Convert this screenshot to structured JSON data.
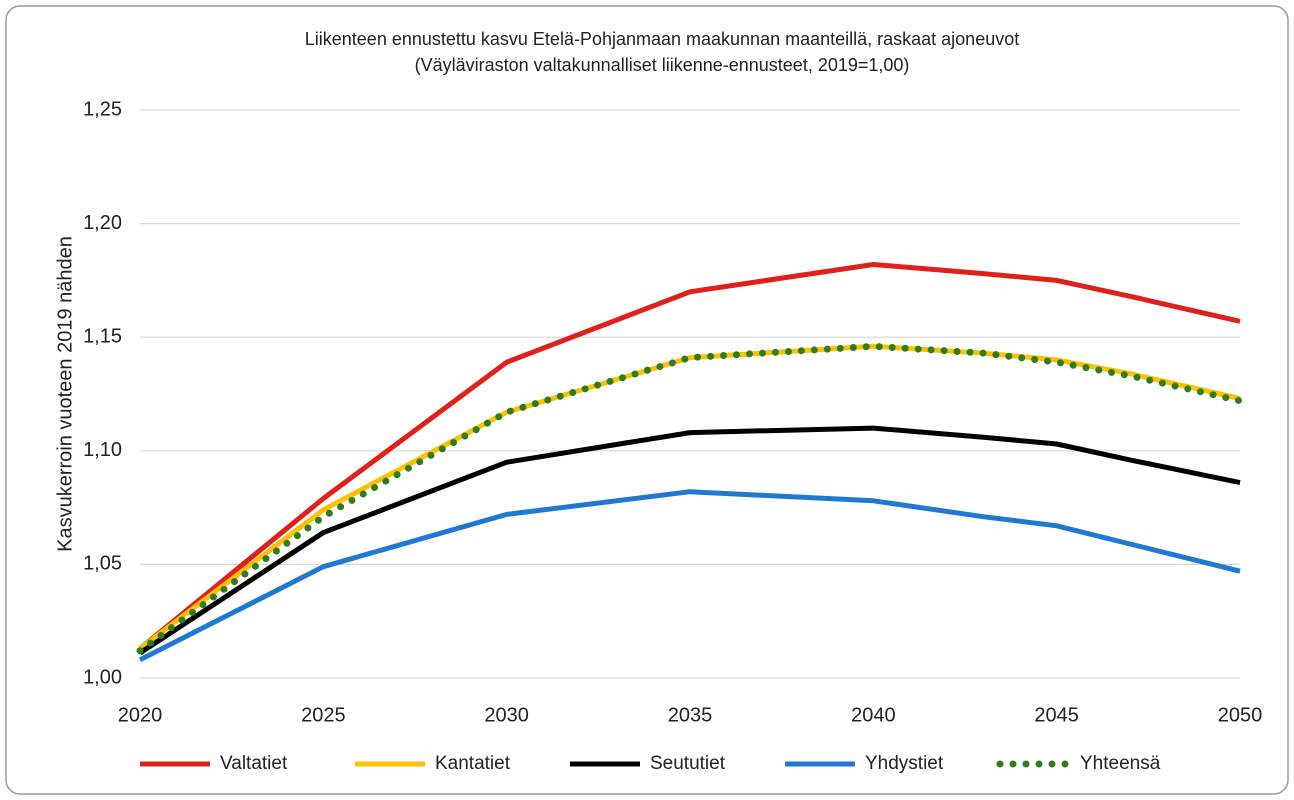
{
  "chart_data": {
    "type": "line",
    "title": "Liikenteen ennustettu kasvu Etelä-Pohjanmaan maakunnan maanteillä, raskaat ajoneuvot",
    "subtitle": "(Väyläviraston valtakunnalliset liikenne-ennusteet, 2019=1,00)",
    "y_label": "Kasvukerroin vuoteen 2019 nähden",
    "x": [
      2020,
      2025,
      2030,
      2035,
      2040,
      2043,
      2045,
      2047,
      2050
    ],
    "series": [
      {
        "name": "Valtatiet",
        "color": "#e0201b",
        "values": [
          1.013,
          1.079,
          1.139,
          1.17,
          1.182,
          1.178,
          1.175,
          1.168,
          1.157
        ]
      },
      {
        "name": "Kantatiet",
        "color": "#ffc000",
        "values": [
          1.013,
          1.074,
          1.117,
          1.141,
          1.146,
          1.143,
          1.14,
          1.134,
          1.123
        ]
      },
      {
        "name": "Seututiet",
        "color": "#000000",
        "values": [
          1.011,
          1.064,
          1.095,
          1.108,
          1.11,
          1.106,
          1.103,
          1.096,
          1.086
        ]
      },
      {
        "name": "Yhdystiet",
        "color": "#1f78d1",
        "values": [
          1.008,
          1.049,
          1.072,
          1.082,
          1.078,
          1.071,
          1.067,
          1.059,
          1.047
        ]
      },
      {
        "name": "Yhteensä",
        "color": "#2e7d1a",
        "dotted": true,
        "values": [
          1.012,
          1.071,
          1.117,
          1.141,
          1.146,
          1.143,
          1.139,
          1.133,
          1.122
        ]
      }
    ],
    "xlim": [
      2020,
      2050
    ],
    "xticks": [
      2020,
      2025,
      2030,
      2035,
      2040,
      2045,
      2050
    ],
    "ylim": [
      1.0,
      1.25
    ],
    "yticks": [
      {
        "value": 1.0,
        "label": "1,00"
      },
      {
        "value": 1.05,
        "label": "1,05"
      },
      {
        "value": 1.1,
        "label": "1,10"
      },
      {
        "value": 1.15,
        "label": "1,15"
      },
      {
        "value": 1.2,
        "label": "1,20"
      },
      {
        "value": 1.25,
        "label": "1,25"
      }
    ],
    "grid": true,
    "legend": "bottom"
  }
}
